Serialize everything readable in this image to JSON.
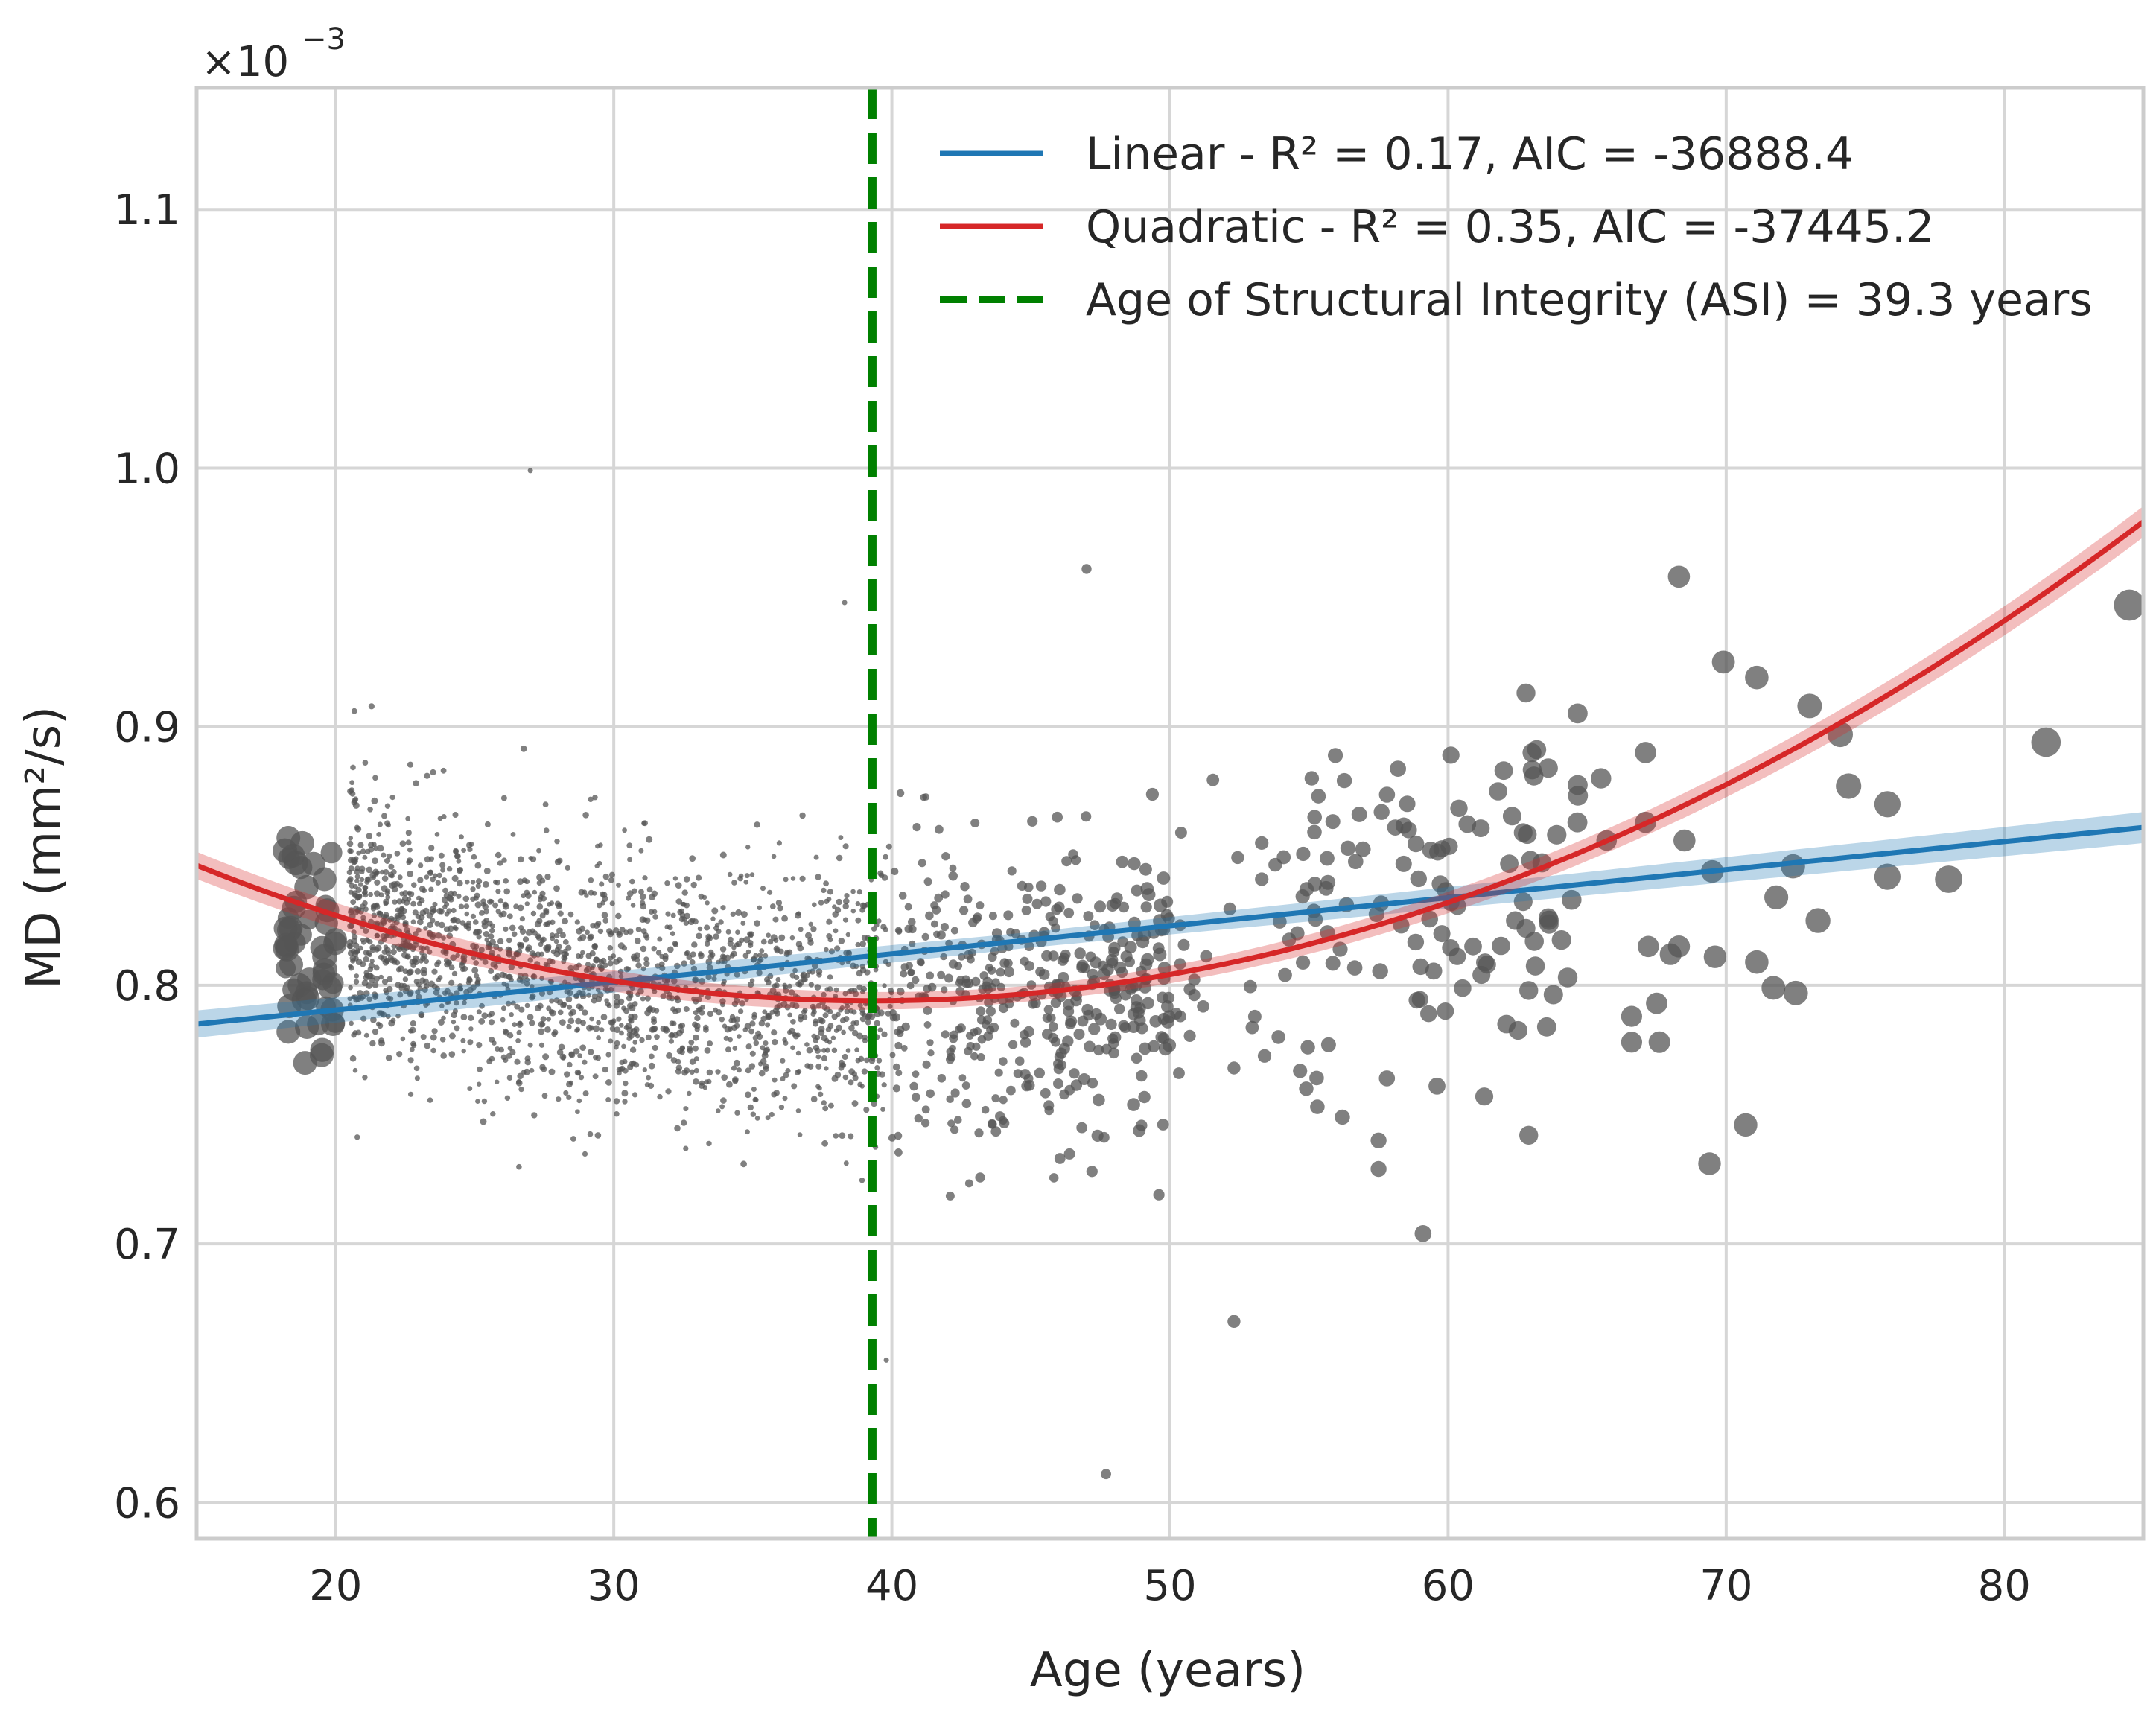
{
  "chart_data": {
    "type": "scatter",
    "xlabel": "Age (years)",
    "ylabel": "MD (mm²/s)",
    "x_ticks": [
      20,
      30,
      40,
      50,
      60,
      70,
      80
    ],
    "y_ticks": [
      0.6,
      0.7,
      0.8,
      0.9,
      1.0,
      1.1
    ],
    "y_tick_labels": [
      "0.6",
      "0.7",
      "0.8",
      "0.9",
      "1.0",
      "1.1"
    ],
    "y_scale_multiplier": "×10",
    "y_scale_exponent": "−3",
    "xlim": [
      15,
      85
    ],
    "ylim": [
      0.586,
      1.147
    ],
    "grid": true,
    "legend_position": "top-right",
    "legend": [
      {
        "label": "Linear - R² = 0.17, AIC = -36888.4",
        "color": "#1f77b4",
        "style": "solid"
      },
      {
        "label": "Quadratic - R² = 0.35, AIC = -37445.2",
        "color": "#d62728",
        "style": "solid"
      },
      {
        "label": "Age of Structural Integrity (ASI) = 39.3 years",
        "color": "#008000",
        "style": "dashed"
      }
    ],
    "fits": {
      "linear": {
        "color": "#1f77b4",
        "points": [
          [
            15,
            0.785
          ],
          [
            85,
            0.861
          ]
        ],
        "ci_halfwidth": 0.003
      },
      "quadratic": {
        "color": "#d62728",
        "coefficients": {
          "a": 8.87e-05,
          "vertex_x": 39.3,
          "vertex_y": 0.794
        },
        "ci_halfwidth": 0.003
      }
    },
    "asi_line": {
      "x": 39.3,
      "color": "#008000"
    },
    "scatter_color": "#555555",
    "notable_points": [
      {
        "x": 18.3,
        "y": 0.857
      },
      {
        "x": 18.8,
        "y": 0.855
      },
      {
        "x": 18.5,
        "y": 0.83
      },
      {
        "x": 19.2,
        "y": 0.847
      },
      {
        "x": 19.6,
        "y": 0.841
      },
      {
        "x": 18.2,
        "y": 0.822
      },
      {
        "x": 18.4,
        "y": 0.808
      },
      {
        "x": 18.7,
        "y": 0.8
      },
      {
        "x": 19.0,
        "y": 0.795
      },
      {
        "x": 19.8,
        "y": 0.799
      },
      {
        "x": 19.5,
        "y": 0.773
      },
      {
        "x": 18.9,
        "y": 0.77
      },
      {
        "x": 18.3,
        "y": 0.782
      },
      {
        "x": 19.9,
        "y": 0.785
      },
      {
        "x": 19.7,
        "y": 0.829
      },
      {
        "x": 27.0,
        "y": 0.999
      },
      {
        "x": 38.3,
        "y": 0.948
      },
      {
        "x": 39.8,
        "y": 0.655
      },
      {
        "x": 47.0,
        "y": 0.961
      },
      {
        "x": 47.7,
        "y": 0.611
      },
      {
        "x": 52.3,
        "y": 0.67
      },
      {
        "x": 59.1,
        "y": 0.704
      },
      {
        "x": 62.8,
        "y": 0.913
      },
      {
        "x": 60.1,
        "y": 0.889
      },
      {
        "x": 61.8,
        "y": 0.875
      },
      {
        "x": 62.0,
        "y": 0.883
      },
      {
        "x": 63.6,
        "y": 0.884
      },
      {
        "x": 65.5,
        "y": 0.88
      },
      {
        "x": 67.1,
        "y": 0.89
      },
      {
        "x": 68.3,
        "y": 0.958
      },
      {
        "x": 69.9,
        "y": 0.925
      },
      {
        "x": 71.1,
        "y": 0.919
      },
      {
        "x": 73.0,
        "y": 0.908
      },
      {
        "x": 74.1,
        "y": 0.897
      },
      {
        "x": 74.4,
        "y": 0.877
      },
      {
        "x": 75.8,
        "y": 0.87
      },
      {
        "x": 81.5,
        "y": 0.894
      },
      {
        "x": 84.5,
        "y": 0.947
      },
      {
        "x": 75.8,
        "y": 0.842
      },
      {
        "x": 78.0,
        "y": 0.841
      },
      {
        "x": 72.4,
        "y": 0.846
      },
      {
        "x": 71.8,
        "y": 0.834
      },
      {
        "x": 73.3,
        "y": 0.825
      },
      {
        "x": 69.5,
        "y": 0.844
      },
      {
        "x": 68.5,
        "y": 0.856
      },
      {
        "x": 71.1,
        "y": 0.809
      },
      {
        "x": 71.7,
        "y": 0.799
      },
      {
        "x": 72.5,
        "y": 0.797
      },
      {
        "x": 70.7,
        "y": 0.746
      },
      {
        "x": 69.4,
        "y": 0.731
      },
      {
        "x": 69.6,
        "y": 0.811
      },
      {
        "x": 67.2,
        "y": 0.815
      },
      {
        "x": 68.0,
        "y": 0.812
      },
      {
        "x": 68.3,
        "y": 0.815
      },
      {
        "x": 66.6,
        "y": 0.788
      },
      {
        "x": 67.5,
        "y": 0.793
      },
      {
        "x": 67.6,
        "y": 0.778
      },
      {
        "x": 66.6,
        "y": 0.778
      },
      {
        "x": 67.1,
        "y": 0.863
      },
      {
        "x": 65.7,
        "y": 0.856
      },
      {
        "x": 64.3,
        "y": 0.803
      },
      {
        "x": 63.1,
        "y": 0.817
      },
      {
        "x": 62.9,
        "y": 0.798
      },
      {
        "x": 62.9,
        "y": 0.742
      },
      {
        "x": 62.1,
        "y": 0.785
      },
      {
        "x": 62.8,
        "y": 0.822
      },
      {
        "x": 61.2,
        "y": 0.804
      },
      {
        "x": 61.4,
        "y": 0.808
      },
      {
        "x": 60.9,
        "y": 0.815
      },
      {
        "x": 61.3,
        "y": 0.757
      },
      {
        "x": 60.1,
        "y": 0.832
      },
      {
        "x": 63.6,
        "y": 0.826
      },
      {
        "x": 62.7,
        "y": 0.859
      },
      {
        "x": 62.2,
        "y": 0.847
      },
      {
        "x": 59.6,
        "y": 0.761
      },
      {
        "x": 59.3,
        "y": 0.789
      },
      {
        "x": 59.9,
        "y": 0.79
      },
      {
        "x": 58.1,
        "y": 0.861
      },
      {
        "x": 57.8,
        "y": 0.764
      },
      {
        "x": 57.5,
        "y": 0.74
      },
      {
        "x": 57.5,
        "y": 0.729
      },
      {
        "x": 56.2,
        "y": 0.749
      },
      {
        "x": 55.7,
        "y": 0.777
      },
      {
        "x": 55.3,
        "y": 0.753
      },
      {
        "x": 53.9,
        "y": 0.78
      },
      {
        "x": 54.9,
        "y": 0.76
      },
      {
        "x": 55.2,
        "y": 0.865
      },
      {
        "x": 55.1,
        "y": 0.88
      },
      {
        "x": 53.3,
        "y": 0.855
      },
      {
        "x": 53.3,
        "y": 0.841
      },
      {
        "x": 50.4,
        "y": 0.859
      },
      {
        "x": 49.6,
        "y": 0.719
      },
      {
        "x": 52.3,
        "y": 0.768
      }
    ]
  }
}
